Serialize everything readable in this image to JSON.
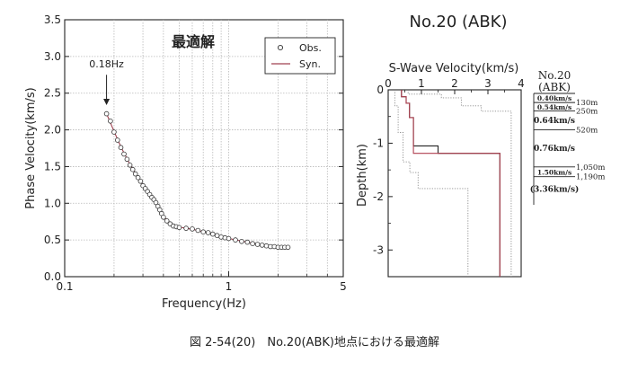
{
  "chart_data": [
    {
      "type": "scatter",
      "title": "最適解",
      "xlabel": "Frequency(Hz)",
      "ylabel": "Phase Velocity(km/s)",
      "xscale": "log",
      "xlim": [
        0.1,
        5
      ],
      "ylim": [
        0,
        3.5
      ],
      "x_ticks": [
        {
          "v": 0.1,
          "label": "0.1"
        },
        {
          "v": 1,
          "label": "1"
        },
        {
          "v": 5,
          "label": "5"
        }
      ],
      "y_ticks": [
        {
          "v": 0,
          "label": "0.0"
        },
        {
          "v": 0.5,
          "label": "0.5"
        },
        {
          "v": 1,
          "label": "1.0"
        },
        {
          "v": 1.5,
          "label": "1.5"
        },
        {
          "v": 2,
          "label": "2.0"
        },
        {
          "v": 2.5,
          "label": "2.5"
        },
        {
          "v": 3,
          "label": "3.0"
        },
        {
          "v": 3.5,
          "label": "3.5"
        }
      ],
      "grid": true,
      "legend": "top-right",
      "annotation": {
        "text": "0.18Hz",
        "x": 0.18,
        "y": 2.3
      },
      "series": [
        {
          "name": "Obs.",
          "marker": "open-circle",
          "color": "#333333",
          "points": [
            [
              0.18,
              2.22
            ],
            [
              0.19,
              2.12
            ],
            [
              0.2,
              1.97
            ],
            [
              0.21,
              1.86
            ],
            [
              0.22,
              1.76
            ],
            [
              0.23,
              1.67
            ],
            [
              0.24,
              1.6
            ],
            [
              0.25,
              1.52
            ],
            [
              0.26,
              1.46
            ],
            [
              0.27,
              1.4
            ],
            [
              0.28,
              1.35
            ],
            [
              0.29,
              1.3
            ],
            [
              0.3,
              1.24
            ],
            [
              0.31,
              1.2
            ],
            [
              0.32,
              1.16
            ],
            [
              0.33,
              1.12
            ],
            [
              0.34,
              1.08
            ],
            [
              0.35,
              1.05
            ],
            [
              0.36,
              1.01
            ],
            [
              0.37,
              0.96
            ],
            [
              0.38,
              0.91
            ],
            [
              0.39,
              0.86
            ],
            [
              0.4,
              0.81
            ],
            [
              0.42,
              0.76
            ],
            [
              0.44,
              0.72
            ],
            [
              0.46,
              0.69
            ],
            [
              0.48,
              0.68
            ],
            [
              0.5,
              0.67
            ],
            [
              0.55,
              0.66
            ],
            [
              0.6,
              0.65
            ],
            [
              0.65,
              0.63
            ],
            [
              0.7,
              0.61
            ],
            [
              0.75,
              0.6
            ],
            [
              0.8,
              0.58
            ],
            [
              0.85,
              0.56
            ],
            [
              0.9,
              0.54
            ],
            [
              0.95,
              0.53
            ],
            [
              1.0,
              0.52
            ],
            [
              1.1,
              0.5
            ],
            [
              1.2,
              0.48
            ],
            [
              1.3,
              0.47
            ],
            [
              1.4,
              0.45
            ],
            [
              1.5,
              0.44
            ],
            [
              1.6,
              0.43
            ],
            [
              1.7,
              0.42
            ],
            [
              1.8,
              0.41
            ],
            [
              1.9,
              0.41
            ],
            [
              2.0,
              0.4
            ],
            [
              2.1,
              0.4
            ],
            [
              2.2,
              0.4
            ],
            [
              2.3,
              0.4
            ]
          ]
        },
        {
          "name": "Syn.",
          "line": true,
          "color": "#a04050",
          "points": [
            [
              0.18,
              2.22
            ],
            [
              0.2,
              1.98
            ],
            [
              0.22,
              1.77
            ],
            [
              0.25,
              1.53
            ],
            [
              0.28,
              1.35
            ],
            [
              0.3,
              1.25
            ],
            [
              0.33,
              1.12
            ],
            [
              0.36,
              1.0
            ],
            [
              0.38,
              0.91
            ],
            [
              0.4,
              0.82
            ],
            [
              0.44,
              0.73
            ],
            [
              0.48,
              0.68
            ],
            [
              0.55,
              0.66
            ],
            [
              0.65,
              0.63
            ],
            [
              0.8,
              0.58
            ],
            [
              1.0,
              0.52
            ],
            [
              1.3,
              0.47
            ],
            [
              1.6,
              0.43
            ],
            [
              2.0,
              0.4
            ],
            [
              2.3,
              0.4
            ]
          ]
        }
      ]
    },
    {
      "type": "line",
      "title": "S-Wave Velocity(km/s)",
      "xlabel": "",
      "ylabel": "Depth(km)",
      "xlim": [
        0,
        4
      ],
      "ylim": [
        -3.5,
        0
      ],
      "x_ticks": [
        {
          "v": 0,
          "label": "0"
        },
        {
          "v": 1,
          "label": "1"
        },
        {
          "v": 2,
          "label": "2"
        },
        {
          "v": 3,
          "label": "3"
        },
        {
          "v": 4,
          "label": "4"
        }
      ],
      "y_ticks": [
        {
          "v": 0,
          "label": "0"
        },
        {
          "v": -1,
          "label": "-1"
        },
        {
          "v": -2,
          "label": "-2"
        },
        {
          "v": -3,
          "label": "-3"
        }
      ],
      "series": [
        {
          "style": "solid-red",
          "color": "#b04050",
          "points": [
            [
              0.4,
              0
            ],
            [
              0.4,
              -0.13
            ],
            [
              0.54,
              -0.13
            ],
            [
              0.54,
              -0.25
            ],
            [
              0.64,
              -0.25
            ],
            [
              0.64,
              -0.52
            ],
            [
              0.76,
              -0.52
            ],
            [
              0.76,
              -1.19
            ],
            [
              3.36,
              -1.19
            ],
            [
              3.36,
              -3.5
            ]
          ]
        },
        {
          "style": "solid-black",
          "color": "#222222",
          "points": [
            [
              0.4,
              0
            ],
            [
              0.4,
              -0.13
            ],
            [
              0.54,
              -0.13
            ],
            [
              0.54,
              -0.25
            ],
            [
              0.64,
              -0.25
            ],
            [
              0.64,
              -0.52
            ],
            [
              0.76,
              -0.52
            ],
            [
              0.76,
              -1.05
            ],
            [
              1.5,
              -1.05
            ],
            [
              1.5,
              -1.19
            ],
            [
              3.36,
              -1.19
            ],
            [
              3.36,
              -3.5
            ]
          ]
        },
        {
          "style": "dotted-lower",
          "color": "#888888",
          "points": [
            [
              0.2,
              0
            ],
            [
              0.2,
              -0.3
            ],
            [
              0.3,
              -0.3
            ],
            [
              0.3,
              -0.8
            ],
            [
              0.45,
              -0.8
            ],
            [
              0.45,
              -1.35
            ],
            [
              0.65,
              -1.35
            ],
            [
              0.65,
              -1.55
            ],
            [
              0.9,
              -1.55
            ],
            [
              0.9,
              -1.85
            ],
            [
              2.4,
              -1.85
            ],
            [
              2.4,
              -3.5
            ]
          ]
        },
        {
          "style": "dotted-upper",
          "color": "#888888",
          "points": [
            [
              0.6,
              0
            ],
            [
              0.6,
              -0.08
            ],
            [
              1.6,
              -0.08
            ],
            [
              1.6,
              -0.15
            ],
            [
              2.2,
              -0.15
            ],
            [
              2.2,
              -0.3
            ],
            [
              2.8,
              -0.3
            ],
            [
              2.8,
              -0.4
            ],
            [
              3.7,
              -0.4
            ],
            [
              3.7,
              -3.5
            ]
          ]
        }
      ]
    },
    {
      "type": "table",
      "title": "No.20\n(ABK)",
      "layers": [
        {
          "vs_label": "0.40km/s",
          "thickness": 0.13,
          "depth_label": "130m"
        },
        {
          "vs_label": "0.54km/s",
          "thickness": 0.12,
          "depth_label": "250m"
        },
        {
          "vs_label": "0.64km/s",
          "thickness": 0.27,
          "depth_label": "520m"
        },
        {
          "vs_label": "0.76km/s",
          "thickness": 0.53,
          "depth_label": "1,050m"
        },
        {
          "vs_label": "1.50km/s",
          "thickness": 0.14,
          "depth_label": "1,190m"
        },
        {
          "vs_label": "(3.36km/s)",
          "thickness": 0.35,
          "depth_label": ""
        }
      ]
    }
  ],
  "figure": {
    "right_title": "No.20 (ABK)",
    "caption": "図 2-54(20)　No.20(ABK)地点における最適解"
  }
}
